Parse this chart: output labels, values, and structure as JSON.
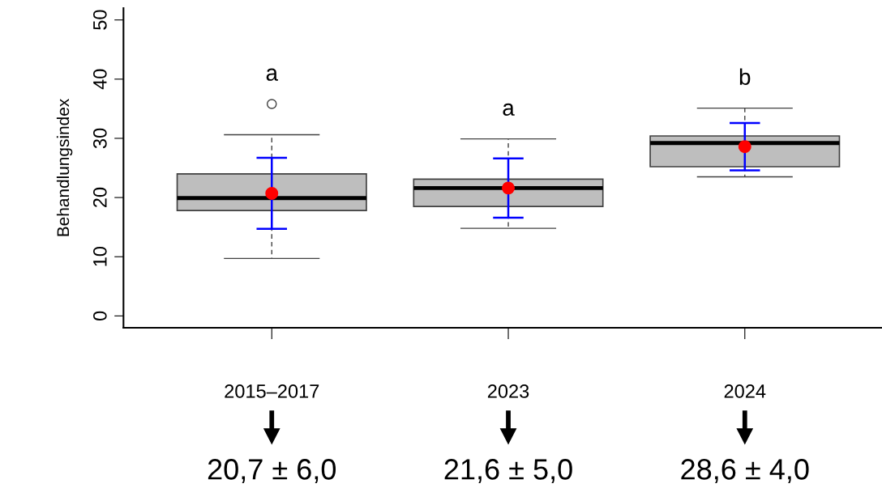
{
  "chart_data": {
    "type": "box",
    "ylabel": "Behandlungsindex",
    "categories": [
      "2015–2017",
      "2023",
      "2024"
    ],
    "boxes": [
      {
        "low": 9.7,
        "q1": 17.8,
        "median": 19.9,
        "q3": 24.0,
        "high": 30.6,
        "outliers": [
          35.8
        ]
      },
      {
        "low": 14.8,
        "q1": 18.5,
        "median": 21.6,
        "q3": 23.1,
        "high": 29.9
      },
      {
        "low": 23.5,
        "q1": 25.2,
        "median": 29.2,
        "q3": 30.4,
        "high": 35.1
      }
    ],
    "color": "#bebebe",
    "series": [
      {
        "type": "scatter",
        "values": [
          20.7,
          21.6,
          28.6
        ],
        "errors": [
          6.0,
          5.0,
          4.0
        ],
        "color": "#ff0000",
        "marker": "circle"
      }
    ],
    "ylim": [
      -2,
      52
    ],
    "yticks": [
      0,
      10,
      20,
      30,
      40,
      50
    ],
    "grid": false,
    "legend": false,
    "annotations": [
      "a",
      "a",
      "b",
      "20,7 ± 6,0",
      "21,6 ± 5,0",
      "28,6 ± 4,0"
    ]
  }
}
